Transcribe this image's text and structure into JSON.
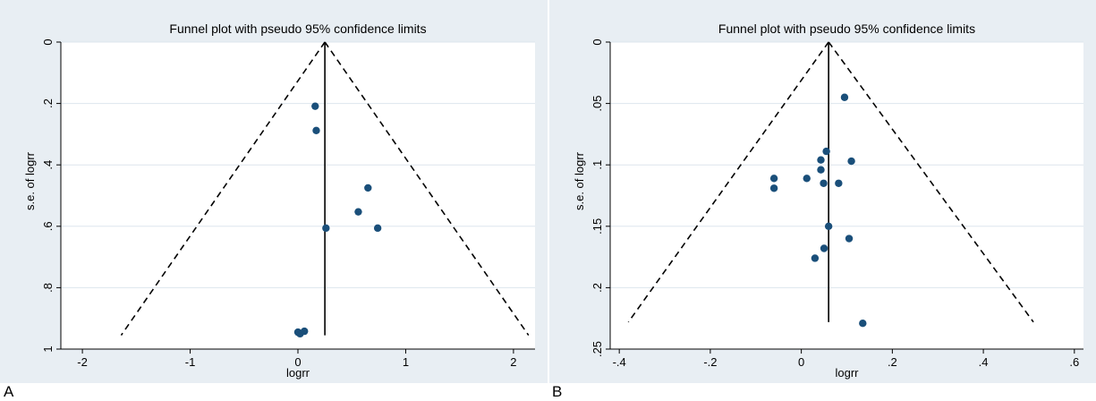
{
  "panels": [
    {
      "letter": "A"
    },
    {
      "letter": "B"
    }
  ],
  "chart_data": [
    {
      "type": "scatter",
      "title": "Funnel plot with pseudo 95% confidence limits",
      "xlabel": "logrr",
      "ylabel": "s.e. of logrr",
      "xlim": [
        -2.2,
        2.2
      ],
      "ylim": [
        1.0,
        0.0
      ],
      "y_reversed": true,
      "x_ticks": [
        "-2",
        "-1",
        "0",
        "1",
        "2"
      ],
      "y_ticks": [
        "0",
        ".2",
        ".4",
        ".6",
        ".8",
        "1"
      ],
      "x_tick_values": [
        -2,
        -1,
        0,
        1,
        2
      ],
      "y_tick_values": [
        0,
        0.2,
        0.4,
        0.6,
        0.8,
        1.0
      ],
      "grid": "horizontal",
      "pooled_estimate": 0.25,
      "pseudo_ci_limits": {
        "apex": [
          0.25,
          0.0
        ],
        "left_bottom": [
          -1.64,
          0.955
        ],
        "right_bottom": [
          2.14,
          0.955
        ]
      },
      "vertical_line_bottom": 0.955,
      "points": [
        {
          "x": 0.16,
          "y": 0.209
        },
        {
          "x": 0.17,
          "y": 0.288
        },
        {
          "x": 0.65,
          "y": 0.475
        },
        {
          "x": 0.56,
          "y": 0.553
        },
        {
          "x": 0.74,
          "y": 0.606
        },
        {
          "x": 0.26,
          "y": 0.606
        },
        {
          "x": 0.0,
          "y": 0.945
        },
        {
          "x": 0.02,
          "y": 0.95
        },
        {
          "x": 0.06,
          "y": 0.942
        }
      ]
    },
    {
      "type": "scatter",
      "title": "Funnel plot with pseudo 95% confidence limits",
      "xlabel": "logrr",
      "ylabel": "s.e. of logrr",
      "xlim": [
        -0.42,
        0.62
      ],
      "ylim": [
        0.25,
        0.0
      ],
      "y_reversed": true,
      "x_ticks": [
        "-.4",
        "-.2",
        "0",
        ".2",
        ".4",
        ".6"
      ],
      "y_ticks": [
        "0",
        ".05",
        ".1",
        ".15",
        ".2",
        ".25"
      ],
      "x_tick_values": [
        -0.4,
        -0.2,
        0,
        0.2,
        0.4,
        0.6
      ],
      "y_tick_values": [
        0,
        0.05,
        0.1,
        0.15,
        0.2,
        0.25
      ],
      "grid": "horizontal",
      "pooled_estimate": 0.06,
      "pseudo_ci_limits": {
        "apex": [
          0.06,
          0.0
        ],
        "left_bottom": [
          -0.38,
          0.228
        ],
        "right_bottom": [
          0.51,
          0.228
        ]
      },
      "vertical_line_bottom": 0.228,
      "points": [
        {
          "x": 0.095,
          "y": 0.045
        },
        {
          "x": 0.055,
          "y": 0.089
        },
        {
          "x": 0.11,
          "y": 0.097
        },
        {
          "x": 0.043,
          "y": 0.096
        },
        {
          "x": 0.043,
          "y": 0.104
        },
        {
          "x": -0.06,
          "y": 0.111
        },
        {
          "x": 0.012,
          "y": 0.111
        },
        {
          "x": 0.049,
          "y": 0.115
        },
        {
          "x": 0.082,
          "y": 0.115
        },
        {
          "x": -0.06,
          "y": 0.119
        },
        {
          "x": 0.06,
          "y": 0.15
        },
        {
          "x": 0.105,
          "y": 0.16
        },
        {
          "x": 0.05,
          "y": 0.168
        },
        {
          "x": 0.03,
          "y": 0.176
        },
        {
          "x": 0.135,
          "y": 0.229
        }
      ]
    }
  ],
  "colors": {
    "outer_bg": "#e8eef3",
    "plot_bg": "#ffffff",
    "grid": "#dde6ee",
    "point": "#1a4f7a",
    "line": "#000000"
  }
}
